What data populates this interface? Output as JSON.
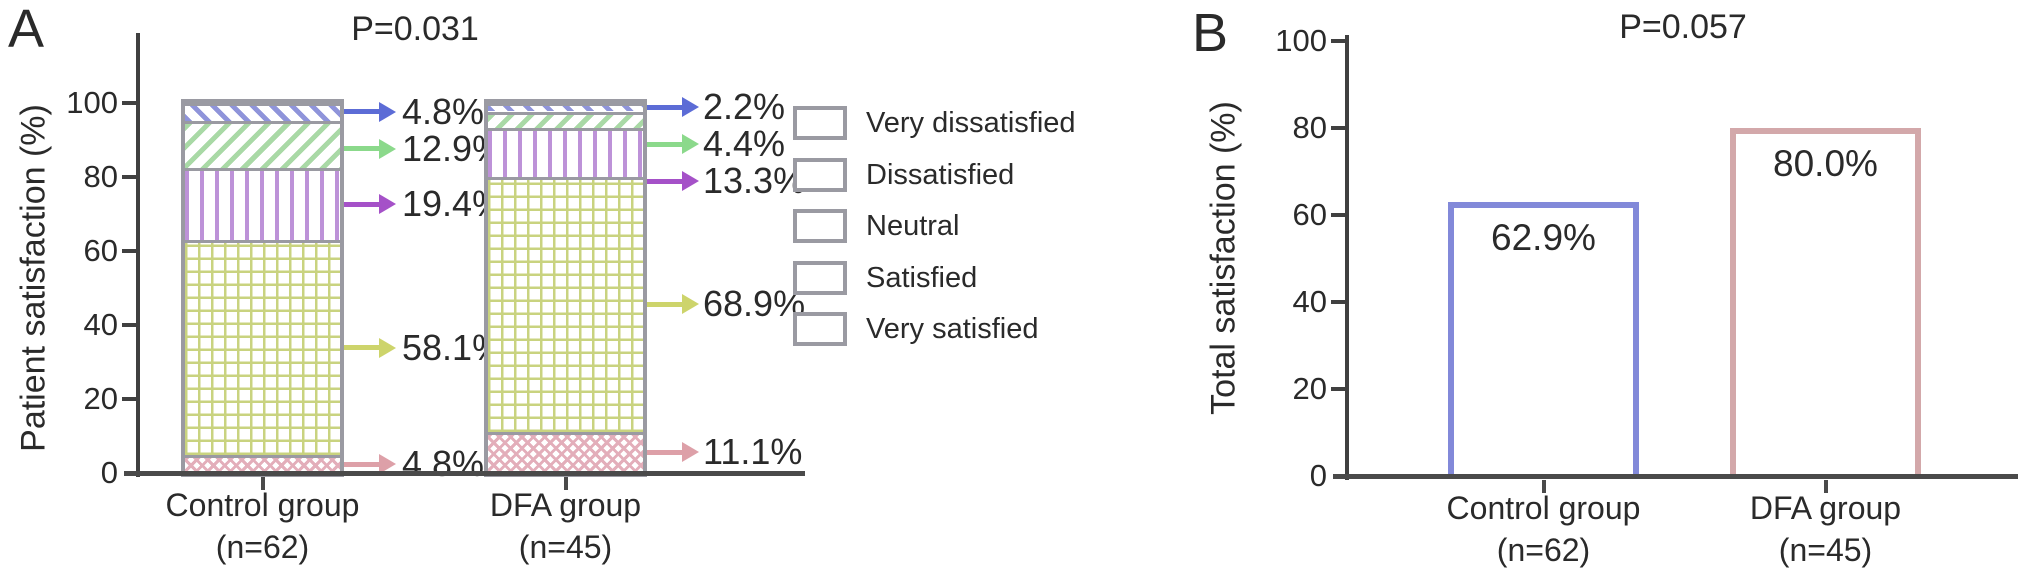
{
  "panels": {
    "a": {
      "letter": "A"
    },
    "b": {
      "letter": "B"
    }
  },
  "styles": {
    "axis_color": "#404040",
    "baseline_color": "#4a4a4a",
    "bar_border_color": "#9a9aa2",
    "text_color": "#2a2a2a",
    "categories": {
      "Very dissatisfied": {
        "pattern": "diag-down",
        "line": "#8f94da",
        "arrow": "#5c6cd6"
      },
      "Dissatisfied": {
        "pattern": "diag-up",
        "line": "#a9d9a6",
        "arrow": "#8bd98b"
      },
      "Neutral": {
        "pattern": "vertical",
        "line": "#bd92d8",
        "arrow": "#a551c8"
      },
      "Satisfied": {
        "pattern": "grid",
        "line": "#c9d37f",
        "arrow": "#cdd46b"
      },
      "Very satisfied": {
        "pattern": "crosshatch",
        "line": "#e3aeba",
        "arrow": "#dda0a8"
      }
    }
  },
  "chart_data": [
    {
      "type": "stacked-bar",
      "panel": "A",
      "title": "P=0.031",
      "ylabel": "Patient satisfaction (%)",
      "ylim": [
        0,
        100
      ],
      "yticks": [
        0,
        20,
        40,
        60,
        80,
        100
      ],
      "categories": [
        "Control group",
        "DFA group"
      ],
      "n_labels": [
        "(n=62)",
        "(n=45)"
      ],
      "series": [
        {
          "name": "Very satisfied",
          "values": [
            4.8,
            11.1
          ],
          "labels": [
            "4.8%",
            "11.1%"
          ]
        },
        {
          "name": "Satisfied",
          "values": [
            58.1,
            68.9
          ],
          "labels": [
            "58.1%",
            "68.9%"
          ]
        },
        {
          "name": "Neutral",
          "values": [
            19.4,
            13.3
          ],
          "labels": [
            "19.4%",
            "13.3%"
          ]
        },
        {
          "name": "Dissatisfied",
          "values": [
            12.9,
            4.4
          ],
          "labels": [
            "12.9%",
            "4.4%"
          ]
        },
        {
          "name": "Very dissatisfied",
          "values": [
            4.8,
            2.2
          ],
          "labels": [
            "4.8%",
            "2.2%"
          ]
        }
      ],
      "legend": [
        "Very dissatisfied",
        "Dissatisfied",
        "Neutral",
        "Satisfied",
        "Very satisfied"
      ],
      "legend_position": "right",
      "grid": false
    },
    {
      "type": "bar",
      "panel": "B",
      "title": "P=0.057",
      "ylabel": "Total satisfaction (%)",
      "ylim": [
        0,
        100
      ],
      "yticks": [
        0,
        20,
        40,
        60,
        80,
        100
      ],
      "categories": [
        "Control group",
        "DFA group"
      ],
      "n_labels": [
        "(n=62)",
        "(n=45)"
      ],
      "values": [
        62.9,
        80.0
      ],
      "value_labels": [
        "62.9%",
        "80.0%"
      ],
      "bar_colors": [
        "#8289d9",
        "#d3a8aa"
      ],
      "grid": false
    }
  ]
}
